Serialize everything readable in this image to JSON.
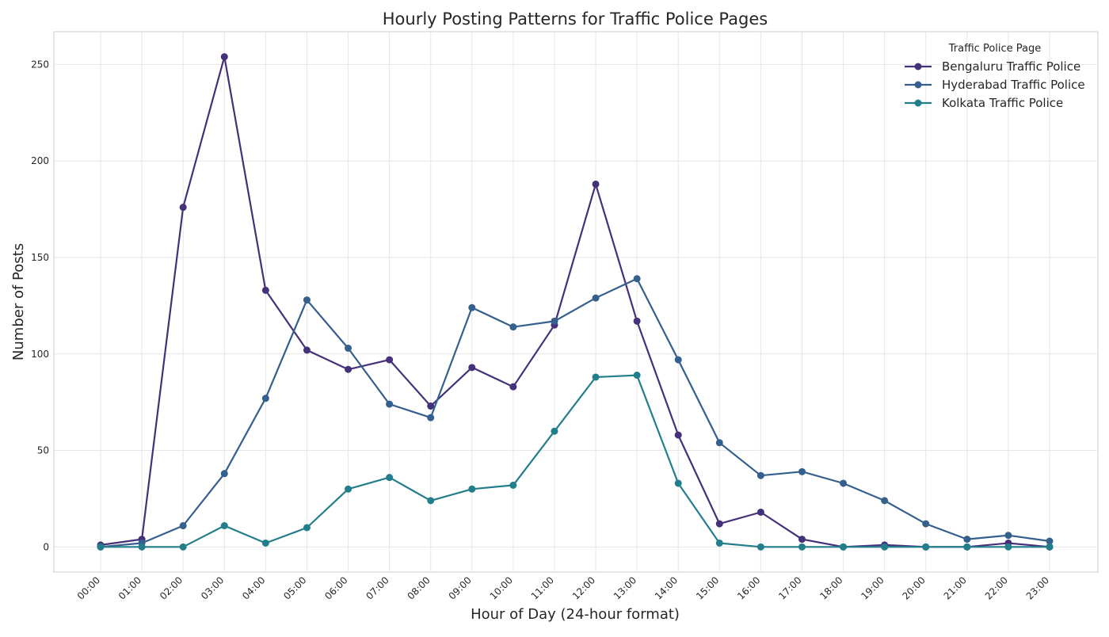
{
  "chart_data": {
    "type": "line",
    "title": "Hourly Posting Patterns for Traffic Police Pages",
    "xlabel": "Hour of Day (24-hour format)",
    "ylabel": "Number of Posts",
    "categories": [
      "00:00",
      "01:00",
      "02:00",
      "03:00",
      "04:00",
      "05:00",
      "06:00",
      "07:00",
      "08:00",
      "09:00",
      "10:00",
      "11:00",
      "12:00",
      "13:00",
      "14:00",
      "15:00",
      "16:00",
      "17:00",
      "18:00",
      "19:00",
      "20:00",
      "21:00",
      "22:00",
      "23:00"
    ],
    "ylim": [
      -13,
      267
    ],
    "yticks": [
      0,
      50,
      100,
      150,
      200,
      250
    ],
    "grid": true,
    "legend": {
      "title": "Traffic Police Page",
      "placement": "top-right"
    },
    "series": [
      {
        "name": "Bengaluru Traffic Police",
        "color": "#45307a",
        "values": [
          1,
          4,
          176,
          254,
          133,
          102,
          92,
          97,
          73,
          93,
          83,
          115,
          188,
          117,
          58,
          12,
          18,
          4,
          0,
          1,
          0,
          0,
          2,
          0
        ]
      },
      {
        "name": "Hyderabad Traffic Police",
        "color": "#355f8d",
        "values": [
          0,
          2,
          11,
          38,
          77,
          128,
          103,
          74,
          67,
          124,
          114,
          117,
          129,
          139,
          97,
          54,
          37,
          39,
          33,
          24,
          12,
          4,
          6,
          3
        ]
      },
      {
        "name": "Kolkata Traffic Police",
        "color": "#227e8b",
        "values": [
          0,
          0,
          0,
          11,
          2,
          10,
          30,
          36,
          24,
          30,
          32,
          60,
          88,
          89,
          33,
          2,
          0,
          0,
          0,
          0,
          0,
          0,
          0,
          0
        ]
      }
    ]
  }
}
